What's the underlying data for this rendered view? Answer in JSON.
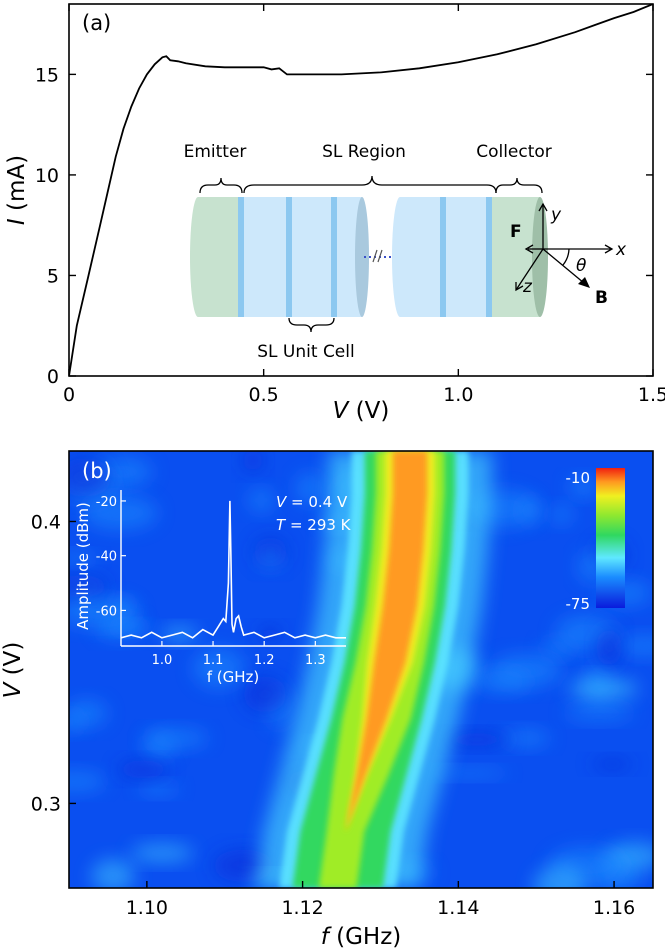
{
  "chart_data": [
    {
      "type": "line",
      "panel_label": "(a)",
      "xlabel": "V (V)",
      "xlabel_var": "V",
      "xlabel_unit": "(V)",
      "ylabel": "I (mA)",
      "ylabel_var": "I",
      "ylabel_unit": "(mA)",
      "xlim": [
        0,
        1.5
      ],
      "ylim": [
        0,
        18.5
      ],
      "xticks": [
        0,
        0.5,
        1.0,
        1.5
      ],
      "xtick_labels": [
        "0",
        "0.5",
        "1.0",
        "1.5"
      ],
      "yticks": [
        0,
        5,
        10,
        15
      ],
      "ytick_labels": [
        "0",
        "5",
        "10",
        "15"
      ],
      "series": [
        {
          "x": [
            0,
            0.02,
            0.05,
            0.08,
            0.1,
            0.12,
            0.14,
            0.16,
            0.18,
            0.2,
            0.22,
            0.24,
            0.25,
            0.26,
            0.28,
            0.3,
            0.35,
            0.4,
            0.45,
            0.5,
            0.52,
            0.54,
            0.56,
            0.6,
            0.7,
            0.8,
            0.9,
            1.0,
            1.1,
            1.2,
            1.3,
            1.35,
            1.4,
            1.45,
            1.5
          ],
          "y": [
            0,
            2.5,
            5.0,
            7.5,
            9.2,
            10.9,
            12.3,
            13.4,
            14.3,
            15.0,
            15.5,
            15.85,
            15.9,
            15.7,
            15.65,
            15.55,
            15.4,
            15.35,
            15.35,
            15.35,
            15.25,
            15.3,
            15.0,
            15.0,
            15.0,
            15.1,
            15.3,
            15.6,
            16.0,
            16.5,
            17.1,
            17.45,
            17.8,
            18.1,
            18.5
          ]
        }
      ],
      "schematic": {
        "labels": [
          "Emitter",
          "SL Region",
          "Collector",
          "SL Unit Cell"
        ],
        "vectors": [
          "F",
          "B"
        ],
        "axes": [
          "x",
          "y",
          "z"
        ],
        "angle": "θ",
        "colors": {
          "contact": "#c7e2cf",
          "sl": "#cde8fb",
          "barrier": "#8cc8f0",
          "contact_face": "#9fbfa8",
          "sl_face": "#a9c9de"
        }
      }
    },
    {
      "type": "heatmap",
      "panel_label": "(b)",
      "xlabel": "f (GHz)",
      "xlabel_var": "f",
      "xlabel_unit": "(GHz)",
      "ylabel": "V (V)",
      "ylabel_var": "V",
      "ylabel_unit": "(V)",
      "xlim": [
        1.09,
        1.165
      ],
      "ylim": [
        0.27,
        0.425
      ],
      "xticks": [
        1.1,
        1.12,
        1.14,
        1.16
      ],
      "xtick_labels": [
        "1.10",
        "1.12",
        "1.14",
        "1.16"
      ],
      "yticks": [
        0.3,
        0.4
      ],
      "ytick_labels": [
        "0.3",
        "0.4"
      ],
      "colorbar": {
        "max_label": "-10",
        "min_label": "-75",
        "range": [
          -75,
          -10
        ]
      },
      "ridge": {
        "v": [
          0.27,
          0.29,
          0.31,
          0.33,
          0.35,
          0.37,
          0.39,
          0.41,
          0.425
        ],
        "f": [
          1.1245,
          1.1255,
          1.1275,
          1.1295,
          1.1312,
          1.1325,
          1.1333,
          1.1338,
          1.1338
        ]
      },
      "inset": {
        "type": "line",
        "xlabel": "f (GHz)",
        "ylabel": "Amplitude (dBm)",
        "xlim": [
          0.92,
          1.36
        ],
        "ylim": [
          -73,
          -16
        ],
        "xticks": [
          1.0,
          1.1,
          1.2,
          1.3
        ],
        "xtick_labels": [
          "1.0",
          "1.1",
          "1.2",
          "1.3"
        ],
        "yticks": [
          -20,
          -40,
          -60
        ],
        "ytick_labels": [
          "-20",
          "-40",
          "-60"
        ],
        "annotations": [
          "V = 0.4 V",
          "T = 293 K"
        ],
        "annotation_parts": [
          [
            "V",
            " = 0.4 V"
          ],
          [
            "T",
            " = 293 K"
          ]
        ],
        "x": [
          0.92,
          0.94,
          0.96,
          0.98,
          1.0,
          1.02,
          1.04,
          1.06,
          1.08,
          1.1,
          1.11,
          1.12,
          1.125,
          1.13,
          1.133,
          1.135,
          1.137,
          1.14,
          1.145,
          1.15,
          1.155,
          1.16,
          1.18,
          1.2,
          1.22,
          1.24,
          1.26,
          1.28,
          1.3,
          1.32,
          1.34,
          1.36
        ],
        "y": [
          -70,
          -69,
          -70,
          -68,
          -70,
          -69,
          -68,
          -70,
          -67,
          -69,
          -66,
          -63,
          -64,
          -50,
          -20,
          -40,
          -65,
          -68,
          -63,
          -62,
          -66,
          -69,
          -68,
          -70,
          -69,
          -68,
          -70,
          -69,
          -70,
          -69,
          -70,
          -70
        ]
      }
    }
  ]
}
